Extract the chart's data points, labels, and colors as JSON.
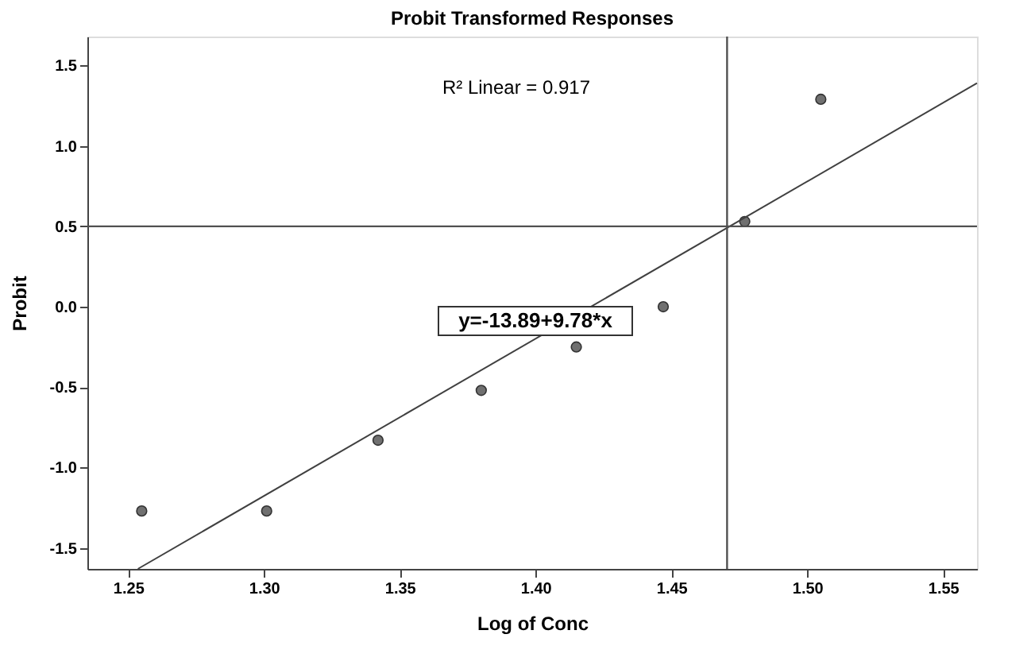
{
  "chart_data": {
    "type": "scatter",
    "title": "Probit Transformed Responses",
    "xlabel": "Log of Conc",
    "ylabel": "Probit",
    "x": [
      1.255,
      1.301,
      1.342,
      1.38,
      1.415,
      1.447,
      1.477,
      1.505
    ],
    "series": [
      {
        "color": "#707070",
        "marker": "circle",
        "values": [
          -1.27,
          -1.27,
          -0.83,
          -0.52,
          -0.25,
          0.0,
          0.53,
          1.29
        ]
      },
      {
        "type": "line",
        "color": "#404040",
        "x": [
          1.2536,
          1.5625
        ],
        "values": [
          -1.63,
          1.39
        ]
      }
    ],
    "xlim": [
      1.235,
      1.5625
    ],
    "ylim": [
      -1.63,
      1.68
    ],
    "xticks": [
      {
        "value": 1.25,
        "label": "1.25"
      },
      {
        "value": 1.3,
        "label": "1.30"
      },
      {
        "value": 1.35,
        "label": "1.35"
      },
      {
        "value": 1.4,
        "label": "1.40"
      },
      {
        "value": 1.45,
        "label": "1.45"
      },
      {
        "value": 1.5,
        "label": "1.50"
      },
      {
        "value": 1.55,
        "label": "1.55"
      }
    ],
    "yticks": [
      {
        "value": -1.5,
        "label": "-1.5"
      },
      {
        "value": -1.0,
        "label": "-1.0"
      },
      {
        "value": -0.5,
        "label": "-0.5"
      },
      {
        "value": 0.0,
        "label": "0.0"
      },
      {
        "value": 0.5,
        "label": "0.5"
      },
      {
        "value": 1.0,
        "label": "1.0"
      },
      {
        "value": 1.5,
        "label": "1.5"
      }
    ],
    "ref_lines": [
      {
        "axis": "x",
        "value": 1.4705,
        "color": "#505050"
      },
      {
        "axis": "y",
        "value": 0.5,
        "color": "#505050"
      }
    ],
    "annotations": [
      "R² Linear = 0.917",
      "y=-13.89+9.78*x"
    ],
    "grid": false
  }
}
